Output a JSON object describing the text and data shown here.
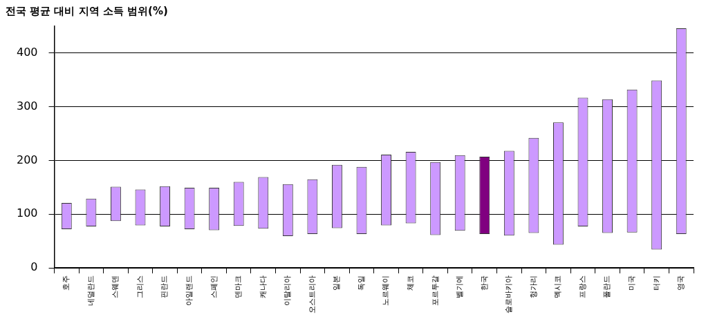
{
  "chart_data": {
    "type": "bar",
    "title": "전국 평균 대비 지역 소득 범위(%)",
    "categories": [
      "호주",
      "네덜란드",
      "스웨덴",
      "그리스",
      "핀란드",
      "아일랜드",
      "스페인",
      "덴마크",
      "캐나다",
      "이탈리아",
      "오스트리아",
      "일본",
      "독일",
      "노르웨이",
      "체코",
      "포르투갈",
      "벨기에",
      "한국",
      "슬로바키아",
      "헝가리",
      "멕시코",
      "프랑스",
      "폴란드",
      "미국",
      "터키",
      "영국"
    ],
    "base": [
      72,
      77,
      87,
      79,
      77,
      72,
      70,
      78,
      73,
      59,
      63,
      74,
      63,
      79,
      83,
      61,
      69,
      63,
      60,
      65,
      43,
      77,
      65,
      66,
      34,
      63
    ],
    "values": [
      49,
      52,
      64,
      67,
      75,
      77,
      79,
      82,
      96,
      97,
      102,
      118,
      125,
      132,
      133,
      136,
      141,
      144,
      158,
      177,
      228,
      240,
      249,
      266,
      315,
      383
    ],
    "colors": [
      "#cc99ff",
      "#cc99ff",
      "#cc99ff",
      "#cc99ff",
      "#cc99ff",
      "#cc99ff",
      "#cc99ff",
      "#cc99ff",
      "#cc99ff",
      "#cc99ff",
      "#cc99ff",
      "#cc99ff",
      "#cc99ff",
      "#cc99ff",
      "#cc99ff",
      "#cc99ff",
      "#cc99ff",
      "#800080",
      "#cc99ff",
      "#cc99ff",
      "#cc99ff",
      "#cc99ff",
      "#cc99ff",
      "#cc99ff",
      "#cc99ff",
      "#cc99ff"
    ],
    "ylim": [
      0,
      450
    ],
    "yticks": [
      0,
      100,
      200,
      300,
      400
    ],
    "grid": "y",
    "legend": false
  }
}
